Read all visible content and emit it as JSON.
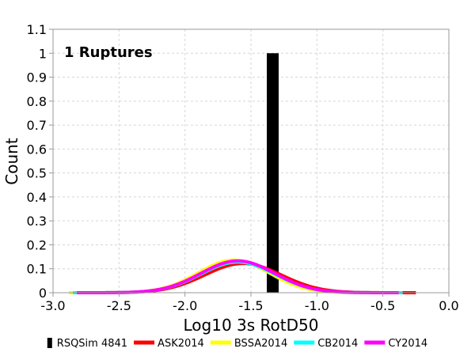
{
  "chart_data": {
    "type": "bar",
    "xlabel": "Log10 3s RotD50",
    "ylabel": "Count",
    "xlim": [
      -3.0,
      0.0
    ],
    "ylim": [
      0,
      1.1
    ],
    "xticks": [
      "-3.0",
      "-2.5",
      "-2.0",
      "-1.5",
      "-1.0",
      "-0.5",
      "0.0"
    ],
    "yticks": [
      "0",
      "0.1",
      "0.2",
      "0.3",
      "0.4",
      "0.5",
      "0.6",
      "0.7",
      "0.8",
      "0.9",
      "1",
      "1.1"
    ],
    "grid": true,
    "annotation": "1 Ruptures",
    "legend_position": "bottom",
    "bars": [
      {
        "series": "RSQSim 4841",
        "x_start": -1.38,
        "x_end": -1.29,
        "value": 1
      }
    ],
    "series": [
      {
        "name": "RSQSim 4841",
        "type": "bar",
        "color": "#000000"
      },
      {
        "name": "ASK2014",
        "type": "line",
        "color": "#ff0000",
        "mean": -1.56,
        "sigma": 0.29,
        "peak": 0.122,
        "x_range": [
          -2.8,
          -0.25
        ]
      },
      {
        "name": "BSSA2014",
        "type": "line",
        "color": "#ffff00",
        "mean": -1.63,
        "sigma": 0.27,
        "peak": 0.136,
        "x_range": [
          -2.88,
          -0.4
        ]
      },
      {
        "name": "CB2014",
        "type": "line",
        "color": "#00ffff",
        "mean": -1.6,
        "sigma": 0.28,
        "peak": 0.128,
        "x_range": [
          -2.85,
          -0.35
        ]
      },
      {
        "name": "CY2014",
        "type": "line",
        "color": "#ff00ff",
        "mean": -1.6,
        "sigma": 0.28,
        "peak": 0.133,
        "x_range": [
          -2.82,
          -0.38
        ]
      }
    ]
  }
}
